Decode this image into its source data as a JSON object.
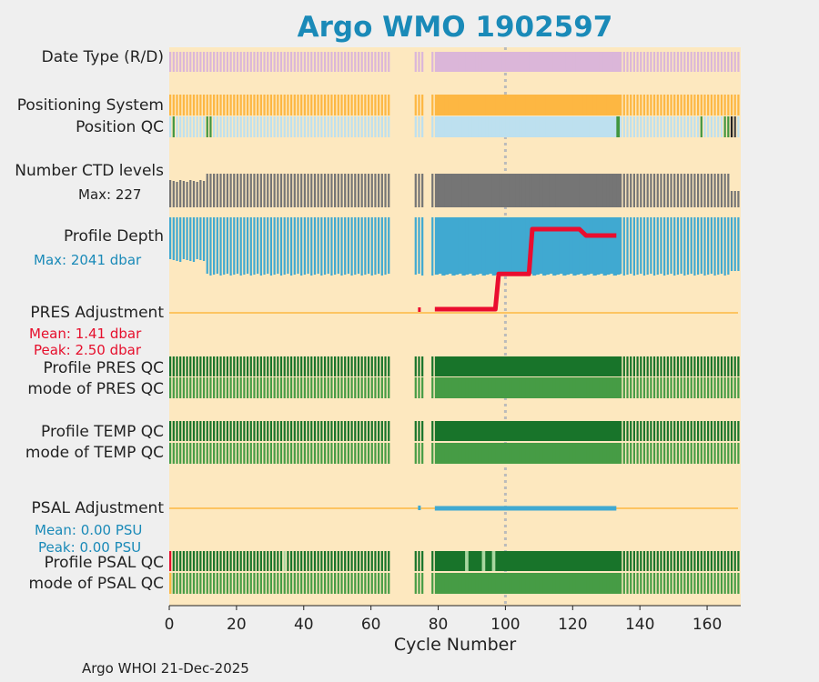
{
  "title": "Argo WMO 1902597",
  "footer": "Argo WHOI 21-Dec-2025",
  "labels": {
    "date_type": "Date Type (R/D)",
    "positioning_system": "Positioning System",
    "position_qc": "Position QC",
    "number_ctd_levels": "Number CTD levels",
    "ctd_max": "Max: 227",
    "profile_depth": "Profile Depth",
    "depth_max": "Max: 2041 dbar",
    "pres_adjustment": "PRES Adjustment",
    "pres_mean": "Mean: 1.41 dbar",
    "pres_peak": "Peak: 2.50 dbar",
    "profile_pres_qc": "Profile PRES QC",
    "mode_pres_qc": "mode of PRES QC",
    "profile_temp_qc": "Profile TEMP QC",
    "mode_temp_qc": "mode of TEMP QC",
    "psal_adjustment": "PSAL Adjustment",
    "psal_mean": "Mean: 0.00 PSU",
    "psal_peak": "Peak: 0.00 PSU",
    "profile_psal_qc": "Profile PSAL QC",
    "mode_psal_qc": "mode of PSAL QC"
  },
  "colors": {
    "background": "#fde8bf",
    "title": "#1a8ab8",
    "date_type": "#dbb6d9",
    "positioning": "#fdb742",
    "position_qc": "#bde0ef",
    "position_qc_good": "#41963f",
    "ctd": "#757575",
    "depth": "#40a9d1",
    "pres_adj_line": "#ea0d2f",
    "psal_adj_line": "#40a9d1",
    "baseline": "#fdb742",
    "qc_dark": "#18742a",
    "qc_light": "#469c45",
    "qc_grey": "#999999",
    "qc_bad": "#e60f2c"
  },
  "chart_data": {
    "type": "timeline",
    "xlabel": "Cycle Number",
    "xlim": [
      0,
      170
    ],
    "xticks": [
      0,
      20,
      40,
      60,
      80,
      100,
      120,
      140,
      160
    ],
    "reference_cycle": 100,
    "gap_cycles": [
      66,
      67,
      68,
      69,
      70,
      71,
      72,
      76,
      77
    ],
    "dense_ranges": [
      [
        79,
        133
      ]
    ],
    "ctd_levels_max": 227,
    "profile_depth_max_dbar": 2041,
    "pres_adjustment": {
      "mean_dbar": 1.41,
      "peak_dbar": 2.5,
      "cycles": [
        74,
        79,
        97,
        98,
        107,
        108,
        122,
        124,
        133
      ],
      "values_dbar": [
        0.0,
        0.0,
        0.0,
        1.1,
        1.1,
        2.5,
        2.5,
        2.3,
        2.3
      ]
    },
    "psal_adjustment": {
      "mean_psu": 0.0,
      "peak_psu": 0.0,
      "cycles": [
        74,
        79,
        133
      ],
      "values_psu": [
        0.0,
        0.0,
        0.0
      ]
    }
  }
}
